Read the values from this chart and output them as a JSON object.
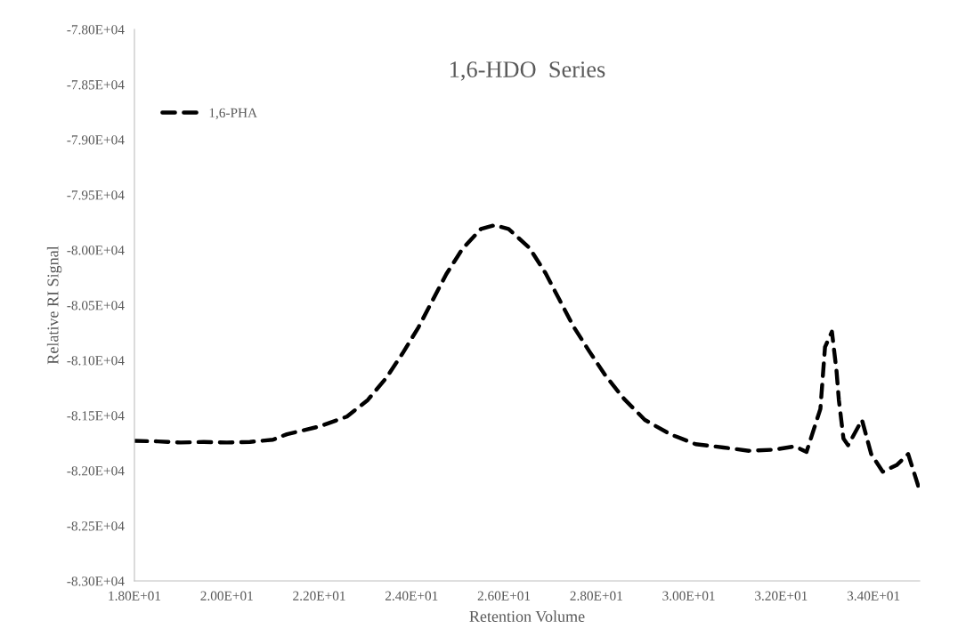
{
  "chart_data": {
    "type": "line",
    "title": "1,6-HDO  Series",
    "xlabel": "Retention Volume",
    "ylabel": "Relative RI Signal",
    "xlim": [
      18,
      35
    ],
    "xticks": [
      {
        "value": 18,
        "label": "1.80E+01"
      },
      {
        "value": 20,
        "label": "2.00E+01"
      },
      {
        "value": 22,
        "label": "2.20E+01"
      },
      {
        "value": 24,
        "label": "2.40E+01"
      },
      {
        "value": 26,
        "label": "2.60E+01"
      },
      {
        "value": 28,
        "label": "2.80E+01"
      },
      {
        "value": 30,
        "label": "3.00E+01"
      },
      {
        "value": 32,
        "label": "3.20E+01"
      },
      {
        "value": 34,
        "label": "3.40E+01"
      }
    ],
    "ylim": [
      -83000,
      -78000
    ],
    "yticks": [
      {
        "value": -83000,
        "label": "-8.30E+04"
      },
      {
        "value": -82500,
        "label": "-8.25E+04"
      },
      {
        "value": -82000,
        "label": "-8.20E+04"
      },
      {
        "value": -81500,
        "label": "-8.15E+04"
      },
      {
        "value": -81000,
        "label": "-8.10E+04"
      },
      {
        "value": -80500,
        "label": "-8.05E+04"
      },
      {
        "value": -80000,
        "label": "-8.00E+04"
      },
      {
        "value": -79500,
        "label": "-7.95E+04"
      },
      {
        "value": -79000,
        "label": "-7.90E+04"
      },
      {
        "value": -78500,
        "label": "-7.85E+04"
      },
      {
        "value": -78000,
        "label": "-7.80E+04"
      }
    ],
    "grid": false,
    "legend": "top left",
    "line_style": "dashed",
    "marker": "none",
    "series": [
      {
        "name": "1,6-PHA",
        "color": "#000000",
        "x": [
          18.0,
          18.5,
          19.0,
          19.5,
          20.0,
          20.5,
          21.0,
          21.3,
          22.0,
          22.6,
          23.05,
          23.45,
          23.8,
          24.15,
          24.45,
          24.75,
          25.1,
          25.5,
          25.8,
          26.1,
          26.55,
          26.9,
          27.2,
          27.5,
          27.85,
          28.2,
          28.6,
          29.05,
          29.6,
          30.15,
          30.75,
          31.3,
          31.85,
          32.3,
          32.55,
          32.85,
          32.95,
          33.1,
          33.2,
          33.25,
          33.35,
          33.45,
          33.75,
          33.95,
          34.2,
          34.5,
          34.75,
          35.0
        ],
        "values": [
          -81730,
          -81735,
          -81745,
          -81740,
          -81745,
          -81740,
          -81720,
          -81670,
          -81600,
          -81510,
          -81360,
          -81160,
          -80940,
          -80700,
          -80460,
          -80220,
          -79990,
          -79810,
          -79775,
          -79810,
          -79980,
          -80210,
          -80450,
          -80690,
          -80920,
          -81140,
          -81350,
          -81540,
          -81670,
          -81760,
          -81790,
          -81820,
          -81810,
          -81780,
          -81830,
          -81440,
          -80880,
          -80740,
          -81100,
          -81360,
          -81710,
          -81770,
          -81540,
          -81850,
          -82010,
          -81950,
          -81850,
          -82180
        ]
      }
    ]
  }
}
